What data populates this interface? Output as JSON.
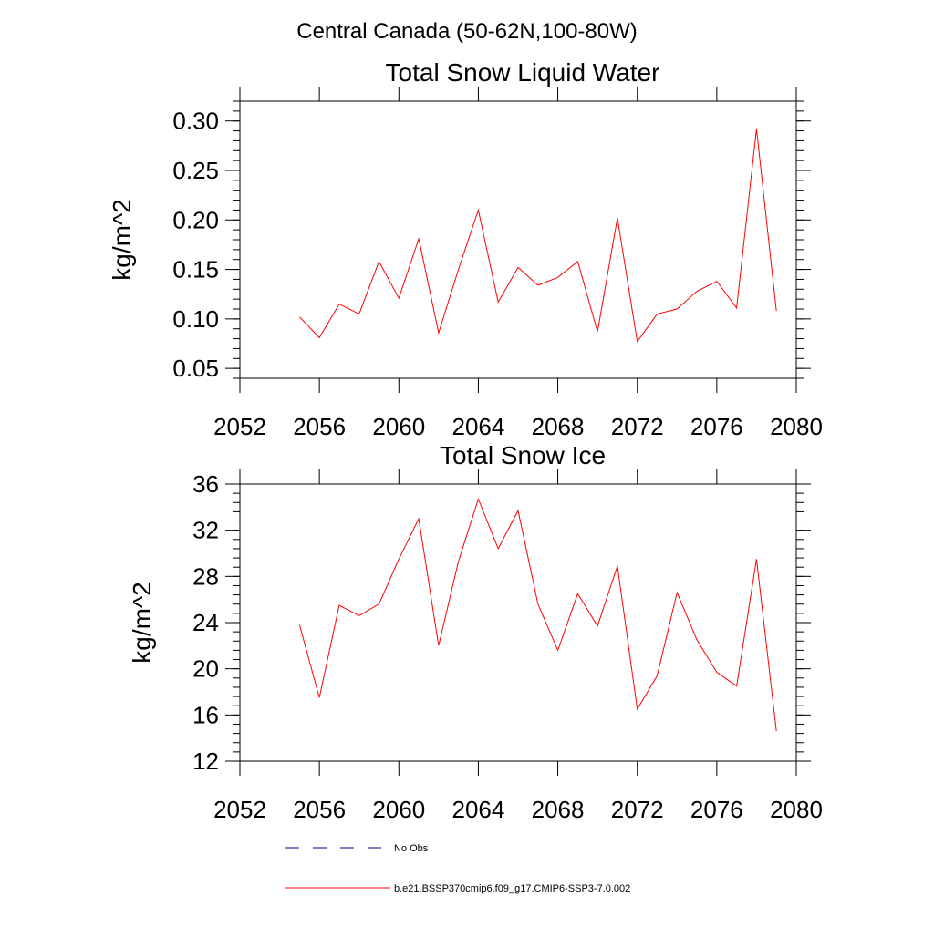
{
  "figure": {
    "suptitle": "Central Canada (50-62N,100-80W)"
  },
  "chart_data": [
    {
      "type": "line",
      "title": "Total Snow Liquid Water",
      "xlabel": "",
      "ylabel": "kg/m^2",
      "xlim": [
        2052,
        2080
      ],
      "ylim": [
        0.04,
        0.32
      ],
      "xticks": [
        2052,
        2056,
        2060,
        2064,
        2068,
        2072,
        2076,
        2080
      ],
      "yticks": [
        0.05,
        0.1,
        0.15,
        0.2,
        0.25,
        0.3
      ],
      "ytick_labels": [
        "0.05",
        "0.10",
        "0.15",
        "0.20",
        "0.25",
        "0.30"
      ],
      "x": [
        2055,
        2056,
        2057,
        2058,
        2059,
        2060,
        2061,
        2062,
        2063,
        2064,
        2065,
        2066,
        2067,
        2068,
        2069,
        2070,
        2071,
        2072,
        2073,
        2074,
        2075,
        2076,
        2077,
        2078,
        2079
      ],
      "series": [
        {
          "name": "b.e21.BSSP370cmip6.f09_g17.CMIP6-SSP3-7.0.002",
          "color": "#ff0000",
          "values": [
            0.102,
            0.081,
            0.115,
            0.105,
            0.158,
            0.121,
            0.181,
            0.086,
            0.15,
            0.21,
            0.117,
            0.152,
            0.134,
            0.142,
            0.158,
            0.087,
            0.202,
            0.077,
            0.105,
            0.11,
            0.128,
            0.138,
            0.111,
            0.292,
            0.108
          ]
        }
      ],
      "grid": false
    },
    {
      "type": "line",
      "title": "Total Snow Ice",
      "xlabel": "",
      "ylabel": "kg/m^2",
      "xlim": [
        2052,
        2080
      ],
      "ylim": [
        12,
        36
      ],
      "xticks": [
        2052,
        2056,
        2060,
        2064,
        2068,
        2072,
        2076,
        2080
      ],
      "yticks": [
        12,
        16,
        20,
        24,
        28,
        32,
        36
      ],
      "ytick_labels": [
        "12",
        "16",
        "20",
        "24",
        "28",
        "32",
        "36"
      ],
      "x": [
        2055,
        2056,
        2057,
        2058,
        2059,
        2060,
        2061,
        2062,
        2063,
        2064,
        2065,
        2066,
        2067,
        2068,
        2069,
        2070,
        2071,
        2072,
        2073,
        2074,
        2075,
        2076,
        2077,
        2078,
        2079
      ],
      "series": [
        {
          "name": "b.e21.BSSP370cmip6.f09_g17.CMIP6-SSP3-7.0.002",
          "color": "#ff0000",
          "values": [
            23.8,
            17.5,
            25.5,
            24.6,
            25.6,
            29.5,
            33.0,
            22.0,
            29.3,
            34.7,
            30.4,
            33.7,
            25.6,
            21.6,
            26.5,
            23.7,
            28.9,
            16.5,
            19.4,
            26.6,
            22.5,
            19.7,
            18.5,
            29.5,
            14.6
          ]
        }
      ],
      "grid": false
    }
  ],
  "legend": {
    "placement": "bottom",
    "items": [
      {
        "label": "No Obs",
        "style": "dashed",
        "color": "#000080"
      },
      {
        "label": "b.e21.BSSP370cmip6.f09_g17.CMIP6-SSP3-7.0.002",
        "style": "solid",
        "color": "#ff0000"
      }
    ]
  }
}
